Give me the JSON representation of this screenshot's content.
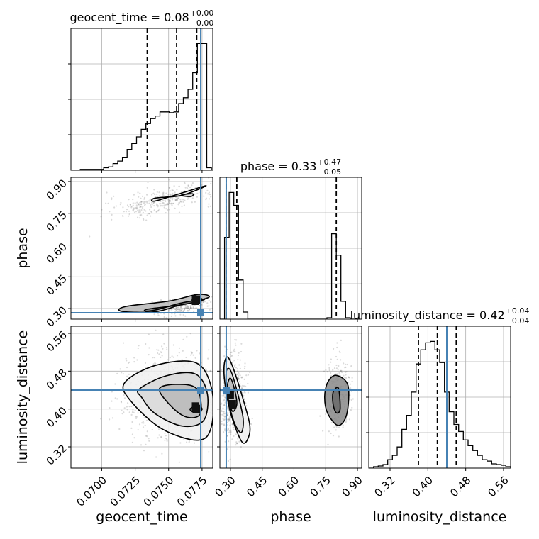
{
  "chart_data": {
    "type": "corner",
    "parameters": [
      "geocent_time",
      "phase",
      "luminosity_distance"
    ],
    "truths": {
      "geocent_time": 0.0774,
      "phase": 0.28,
      "luminosity_distance": 0.44
    },
    "colors": {
      "truth": "#4682b4",
      "hist": "#000000",
      "grid": "#b0b0b0",
      "samples": "#555555"
    },
    "ranges": {
      "geocent_time": [
        0.0677,
        0.0783
      ],
      "phase": [
        0.25,
        0.92
      ],
      "luminosity_distance": [
        0.275,
        0.575
      ]
    },
    "ticks": {
      "geocent_time": [
        {
          "v": 0.07,
          "label": "0.0700"
        },
        {
          "v": 0.0725,
          "label": "0.0725"
        },
        {
          "v": 0.075,
          "label": "0.0750"
        },
        {
          "v": 0.0775,
          "label": "0.0775"
        }
      ],
      "phase": [
        {
          "v": 0.3,
          "label": "0.30"
        },
        {
          "v": 0.45,
          "label": "0.45"
        },
        {
          "v": 0.6,
          "label": "0.60"
        },
        {
          "v": 0.75,
          "label": "0.75"
        },
        {
          "v": 0.9,
          "label": "0.90"
        }
      ],
      "luminosity_distance": [
        {
          "v": 0.32,
          "label": "0.32"
        },
        {
          "v": 0.4,
          "label": "0.40"
        },
        {
          "v": 0.48,
          "label": "0.48"
        },
        {
          "v": 0.56,
          "label": "0.56"
        }
      ]
    },
    "titles": [
      {
        "param": "geocent_time",
        "main": "geocent_time = 0.08",
        "sup": "+0.00",
        "sub": "−0.00"
      },
      {
        "param": "phase",
        "main": "phase = 0.33",
        "sup": "+0.47",
        "sub": "−0.05"
      },
      {
        "param": "luminosity_distance",
        "main": "luminosity_distance = 0.42",
        "sup": "+0.04",
        "sub": "−0.04"
      }
    ],
    "quantiles": {
      "geocent_time": [
        0.0734,
        0.0756,
        0.0771
      ],
      "phase": [
        0.28,
        0.33,
        0.8
      ],
      "luminosity_distance": [
        0.38,
        0.42,
        0.46
      ]
    },
    "histograms": {
      "geocent_time": {
        "edges": [
          0.0677,
          0.06805,
          0.0684,
          0.06875,
          0.0691,
          0.06945,
          0.0698,
          0.07015,
          0.0705,
          0.07085,
          0.0712,
          0.07155,
          0.0719,
          0.07225,
          0.0726,
          0.07295,
          0.0733,
          0.07365,
          0.074,
          0.07435,
          0.0747,
          0.07505,
          0.0754,
          0.07575,
          0.0761,
          0.07645,
          0.0768,
          0.07715,
          0.0775,
          0.07785,
          0.0782
        ],
        "counts": [
          0,
          0,
          1,
          1,
          1,
          1,
          1,
          3,
          4,
          8,
          11,
          15,
          25,
          32,
          40,
          49,
          56,
          62,
          65,
          70,
          70,
          69,
          70,
          80,
          87,
          97,
          117,
          152,
          152,
          3
        ]
      },
      "phase": {
        "edges": [
          0.25,
          0.272,
          0.294,
          0.316,
          0.338,
          0.36,
          0.382,
          0.404,
          0.426,
          0.448,
          0.47,
          0.492,
          0.514,
          0.536,
          0.558,
          0.58,
          0.602,
          0.624,
          0.646,
          0.668,
          0.69,
          0.712,
          0.734,
          0.756,
          0.778,
          0.8,
          0.822,
          0.844,
          0.866,
          0.888,
          0.91
        ],
        "counts": [
          0,
          115,
          178,
          160,
          55,
          10,
          0,
          0,
          0,
          0,
          0,
          0,
          0,
          0,
          0,
          0,
          0,
          0,
          0,
          0,
          0,
          0,
          0,
          2,
          120,
          90,
          25,
          2,
          0,
          0
        ]
      },
      "luminosity_distance": {
        "edges": [
          0.275,
          0.285,
          0.295,
          0.305,
          0.315,
          0.325,
          0.335,
          0.345,
          0.355,
          0.365,
          0.375,
          0.385,
          0.395,
          0.405,
          0.415,
          0.425,
          0.435,
          0.445,
          0.455,
          0.465,
          0.475,
          0.485,
          0.495,
          0.505,
          0.515,
          0.525,
          0.535,
          0.545,
          0.555,
          0.565,
          0.575
        ],
        "counts": [
          0,
          2,
          3,
          5,
          12,
          18,
          30,
          55,
          75,
          108,
          148,
          168,
          178,
          180,
          168,
          150,
          108,
          80,
          62,
          52,
          40,
          32,
          25,
          18,
          12,
          10,
          6,
          5,
          4,
          2
        ]
      }
    },
    "contours": [
      {
        "x": "geocent_time",
        "y": "phase",
        "levels": [
          [
            [
              0.074,
              0.822
            ],
            [
              0.076,
              0.835
            ],
            [
              0.0778,
              0.88
            ],
            [
              0.0763,
              0.852
            ],
            [
              0.074,
              0.808
            ]
          ],
          [
            [
              0.076,
              0.837
            ],
            [
              0.0768,
              0.842
            ],
            [
              0.0767,
              0.83
            ],
            [
              0.0761,
              0.832
            ]
          ],
          [
            [
              0.0715,
              0.287
            ],
            [
              0.074,
              0.285
            ],
            [
              0.076,
              0.32
            ],
            [
              0.078,
              0.353
            ],
            [
              0.0772,
              0.367
            ],
            [
              0.075,
              0.335
            ],
            [
              0.0718,
              0.31
            ]
          ],
          [
            [
              0.0733,
              0.288
            ],
            [
              0.0735,
              0.298
            ],
            [
              0.076,
              0.318
            ],
            [
              0.0777,
              0.343
            ],
            [
              0.076,
              0.327
            ],
            [
              0.0742,
              0.296
            ]
          ],
          [
            [
              0.0768,
              0.336
            ],
            [
              0.0775,
              0.345
            ],
            [
              0.0769,
              0.352
            ]
          ]
        ],
        "core_points": [
          [
            0.0771,
            0.342
          ],
          [
            0.077,
            0.337
          ]
        ]
      },
      {
        "x": "geocent_time",
        "y": "luminosity_distance",
        "levels": [
          [
            [
              0.0717,
              0.455
            ],
            [
              0.074,
              0.492
            ],
            [
              0.077,
              0.498
            ],
            [
              0.0782,
              0.445
            ],
            [
              0.0782,
              0.363
            ],
            [
              0.0772,
              0.334
            ],
            [
              0.0745,
              0.358
            ],
            [
              0.0722,
              0.416
            ]
          ],
          [
            [
              0.0728,
              0.442
            ],
            [
              0.0748,
              0.47
            ],
            [
              0.077,
              0.474
            ],
            [
              0.0779,
              0.431
            ],
            [
              0.0776,
              0.375
            ],
            [
              0.076,
              0.364
            ],
            [
              0.074,
              0.39
            ],
            [
              0.073,
              0.424
            ]
          ],
          [
            [
              0.0743,
              0.441
            ],
            [
              0.0755,
              0.452
            ],
            [
              0.0771,
              0.443
            ],
            [
              0.0774,
              0.392
            ],
            [
              0.0765,
              0.382
            ],
            [
              0.0754,
              0.4
            ]
          ],
          [
            [
              0.0766,
              0.4
            ],
            [
              0.0772,
              0.407
            ],
            [
              0.0775,
              0.399
            ],
            [
              0.077,
              0.392
            ]
          ]
        ],
        "core_points": [
          [
            0.0771,
            0.4
          ],
          [
            0.077,
            0.405
          ]
        ]
      },
      {
        "x": "phase",
        "y": "luminosity_distance",
        "levels": [
          [
            [
              0.27,
              0.492
            ],
            [
              0.285,
              0.51
            ],
            [
              0.31,
              0.49
            ],
            [
              0.35,
              0.435
            ],
            [
              0.39,
              0.37
            ],
            [
              0.385,
              0.34
            ],
            [
              0.355,
              0.33
            ],
            [
              0.305,
              0.385
            ],
            [
              0.275,
              0.45
            ]
          ],
          [
            [
              0.28,
              0.478
            ],
            [
              0.3,
              0.482
            ],
            [
              0.33,
              0.44
            ],
            [
              0.36,
              0.38
            ],
            [
              0.35,
              0.35
            ],
            [
              0.315,
              0.375
            ],
            [
              0.285,
              0.43
            ]
          ],
          [
            [
              0.285,
              0.448
            ],
            [
              0.3,
              0.465
            ],
            [
              0.32,
              0.44
            ],
            [
              0.33,
              0.41
            ],
            [
              0.31,
              0.395
            ],
            [
              0.29,
              0.42
            ]
          ],
          [
            [
              0.76,
              0.457
            ],
            [
              0.8,
              0.471
            ],
            [
              0.855,
              0.45
            ],
            [
              0.85,
              0.39
            ],
            [
              0.81,
              0.365
            ],
            [
              0.76,
              0.39
            ],
            [
              0.745,
              0.425
            ]
          ],
          [
            [
              0.785,
              0.435
            ],
            [
              0.81,
              0.444
            ],
            [
              0.818,
              0.4
            ],
            [
              0.8,
              0.392
            ],
            [
              0.785,
              0.41
            ]
          ]
        ],
        "core_points": [
          [
            0.3,
            0.43
          ],
          [
            0.31,
            0.41
          ]
        ]
      }
    ],
    "scatter_regions": [
      {
        "x": "geocent_time",
        "y": "phase",
        "cx": 0.0745,
        "cy": 0.81,
        "sx": 0.002,
        "sy": 0.03,
        "n": 320,
        "slope": 12
      },
      {
        "x": "geocent_time",
        "y": "phase",
        "cx": 0.076,
        "cy": 0.31,
        "sx": 0.0012,
        "sy": 0.02,
        "n": 260,
        "slope": 10
      },
      {
        "x": "geocent_time",
        "y": "luminosity_distance",
        "cx": 0.0752,
        "cy": 0.43,
        "sx": 0.0018,
        "sy": 0.045,
        "n": 900,
        "slope": 0
      },
      {
        "x": "phase",
        "y": "luminosity_distance",
        "cx": 0.315,
        "cy": 0.425,
        "sx": 0.03,
        "sy": 0.045,
        "n": 500,
        "slope": 0
      },
      {
        "x": "phase",
        "y": "luminosity_distance",
        "cx": 0.805,
        "cy": 0.43,
        "sx": 0.03,
        "sy": 0.04,
        "n": 260,
        "slope": 0
      }
    ]
  }
}
